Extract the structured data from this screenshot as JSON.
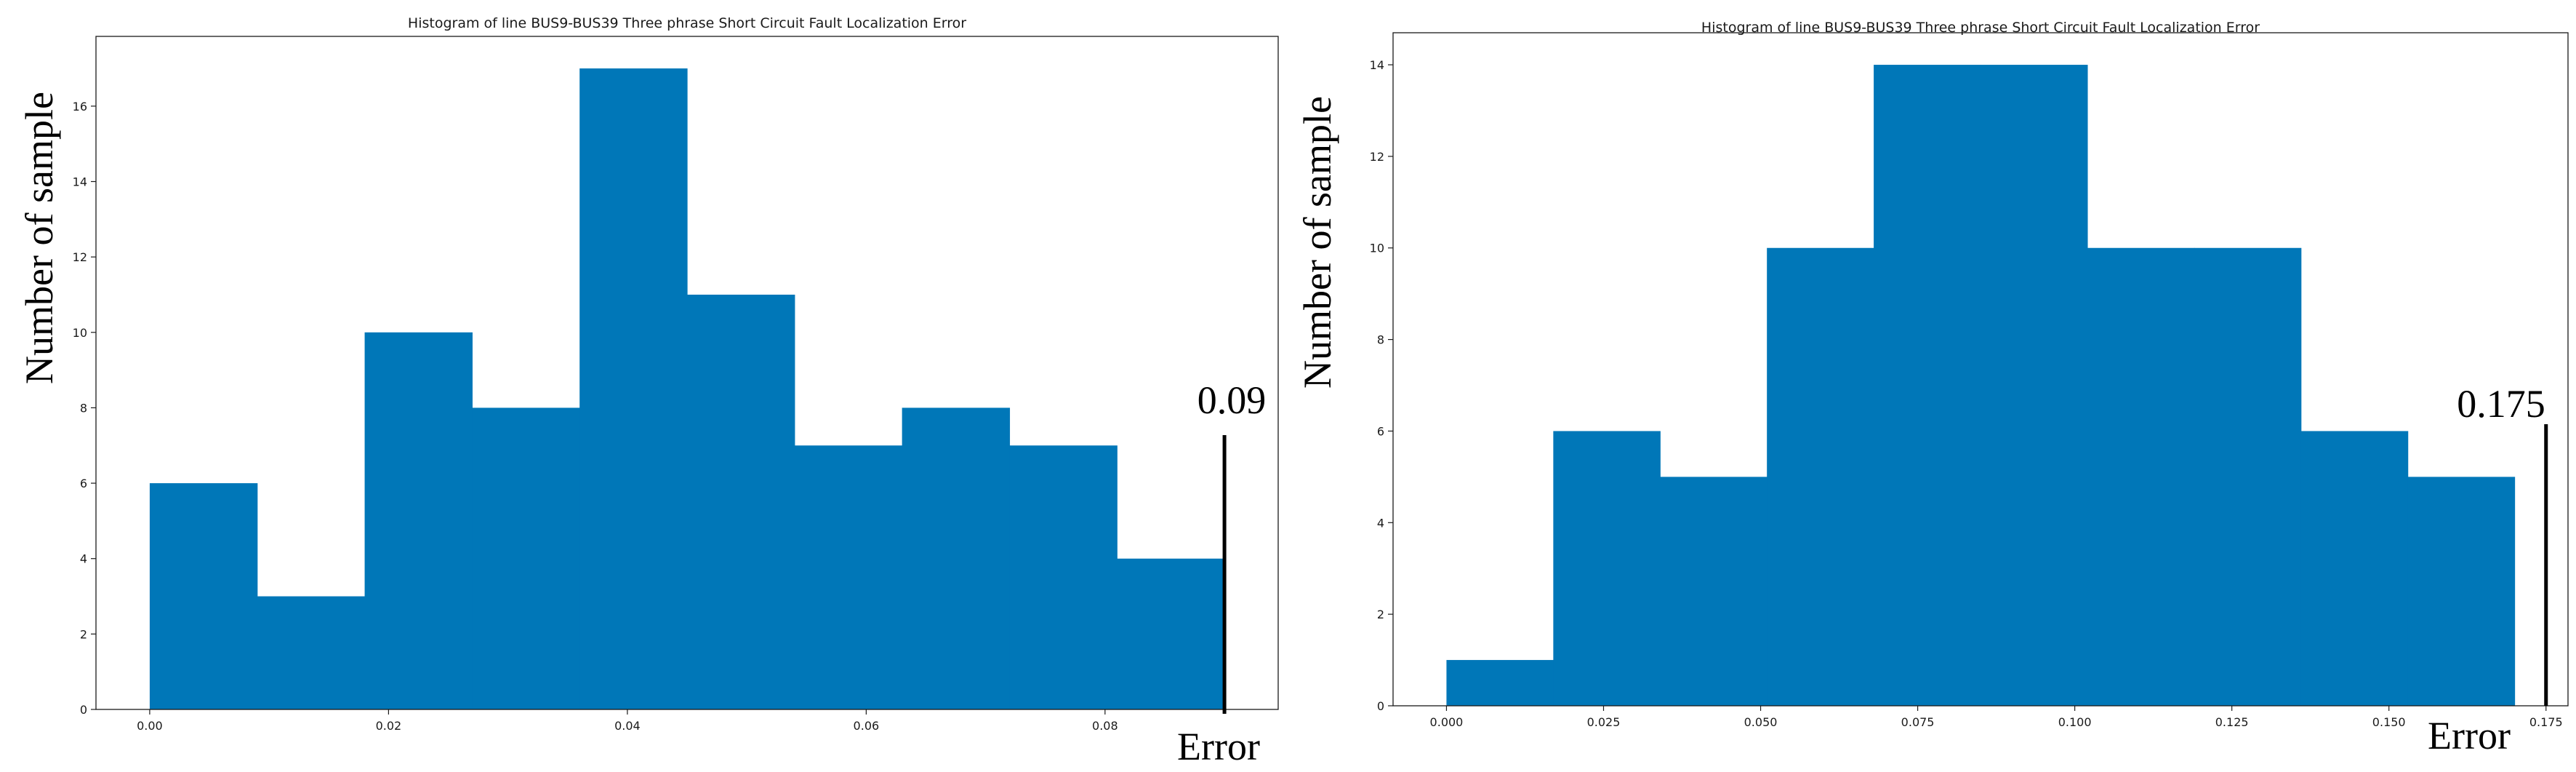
{
  "chart_data": [
    {
      "type": "bar",
      "title": "Histogram of line BUS9-BUS39 Three phrase Short Circuit Fault Localization Error",
      "xlabel": "Error",
      "ylabel": "Number of sample",
      "bin_edges": [
        0.0,
        0.009,
        0.018,
        0.027,
        0.036,
        0.045,
        0.054,
        0.063,
        0.072,
        0.081,
        0.09
      ],
      "values": [
        6,
        3,
        10,
        8,
        17,
        11,
        7,
        8,
        7,
        4
      ],
      "xlim": [
        -0.0045,
        0.0945
      ],
      "ylim": [
        0,
        17.85
      ],
      "xticks": [
        0.0,
        0.02,
        0.04,
        0.06,
        0.08
      ],
      "xtick_labels": [
        "0.00",
        "0.02",
        "0.04",
        "0.06",
        "0.08"
      ],
      "yticks": [
        0,
        2,
        4,
        6,
        8,
        10,
        12,
        14,
        16
      ],
      "ytick_labels": [
        "0",
        "2",
        "4",
        "6",
        "8",
        "10",
        "12",
        "14",
        "16"
      ],
      "annotation": {
        "x": 0.09,
        "label": "0.09"
      },
      "bar_color": "#0077b8",
      "grid": false
    },
    {
      "type": "bar",
      "title": "Histogram of line BUS9-BUS39 Three phrase Short Circuit Fault Localization Error",
      "xlabel": "Error",
      "ylabel": "Number of sample",
      "bin_edges": [
        0.0,
        0.017,
        0.034,
        0.051,
        0.068,
        0.085,
        0.102,
        0.119,
        0.136,
        0.153,
        0.17
      ],
      "values": [
        1,
        6,
        5,
        10,
        14,
        14,
        10,
        10,
        6,
        5
      ],
      "xlim": [
        -0.0085,
        0.1785
      ],
      "ylim": [
        0,
        14.7
      ],
      "xticks": [
        0.0,
        0.025,
        0.05,
        0.075,
        0.1,
        0.125,
        0.15,
        0.175
      ],
      "xtick_labels": [
        "0.000",
        "0.025",
        "0.050",
        "0.075",
        "0.100",
        "0.125",
        "0.150",
        "0.175"
      ],
      "yticks": [
        0,
        2,
        4,
        6,
        8,
        10,
        12,
        14
      ],
      "ytick_labels": [
        "0",
        "2",
        "4",
        "6",
        "8",
        "10",
        "12",
        "14"
      ],
      "annotation": {
        "x": 0.175,
        "label": "0.175"
      },
      "bar_color": "#0077b8",
      "grid": false
    }
  ]
}
